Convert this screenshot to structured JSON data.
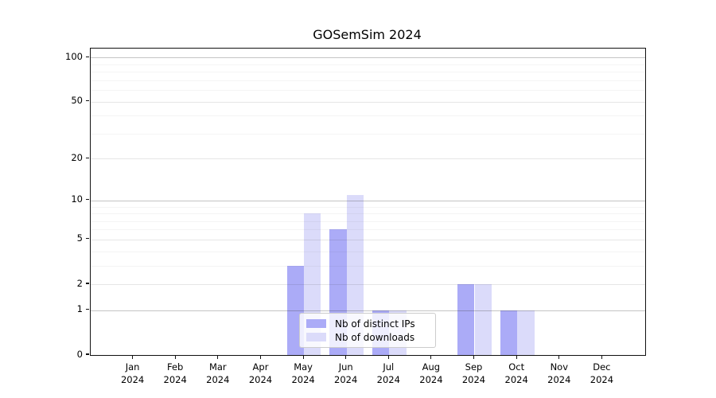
{
  "chart_data": {
    "type": "bar",
    "title": "GOSemSim 2024",
    "categories": [
      "Jan 2024",
      "Feb 2024",
      "Mar 2024",
      "Apr 2024",
      "May 2024",
      "Jun 2024",
      "Jul 2024",
      "Aug 2024",
      "Sep 2024",
      "Oct 2024",
      "Nov 2024",
      "Dec 2024"
    ],
    "series": [
      {
        "name": "Nb of distinct IPs",
        "color": "#ababf7",
        "values": [
          0,
          0,
          0,
          0,
          3,
          6,
          1,
          0,
          2,
          1,
          0,
          0
        ]
      },
      {
        "name": "Nb of downloads",
        "color": "#dbdbfa",
        "values": [
          0,
          0,
          0,
          0,
          8,
          11,
          1,
          0,
          2,
          1,
          0,
          0
        ]
      }
    ],
    "yscale": "log1p",
    "ylim": [
      0,
      115
    ],
    "y_major_ticks": [
      0,
      1,
      2,
      5,
      10,
      20,
      50,
      100
    ],
    "y_decade_gridlines": [
      1,
      10,
      100
    ],
    "y_mid_gridlines": [
      2,
      5,
      20,
      50
    ],
    "y_minor_gridlines": [
      3,
      4,
      6,
      7,
      8,
      9,
      30,
      40,
      60,
      70,
      80,
      90
    ],
    "grid": "on",
    "legend_position": "inside-bottom-center"
  },
  "legend": {
    "items": [
      {
        "label": "Nb of distinct IPs",
        "color": "#ababf7"
      },
      {
        "label": "Nb of downloads",
        "color": "#dbdbfa"
      }
    ]
  },
  "colors": {
    "distinct_ips_bar": "#ababf7",
    "downloads_bar": "#dbdbfa",
    "spine": "#111111",
    "background": "#ffffff"
  }
}
